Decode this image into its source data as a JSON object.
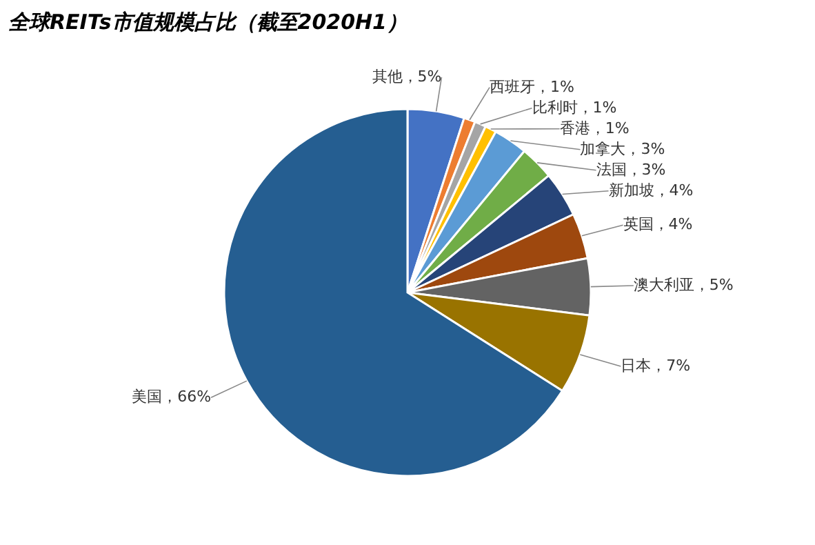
{
  "chart_data": {
    "type": "pie",
    "title": "全球REITs市值规模占比（截至2020H1）",
    "categories": [
      "其他",
      "西班牙",
      "比利时",
      "香港",
      "加拿大",
      "法国",
      "新加坡",
      "英国",
      "澳大利亚",
      "日本",
      "美国"
    ],
    "values": [
      5,
      1,
      1,
      1,
      3,
      3,
      4,
      4,
      5,
      7,
      66
    ],
    "value_labels": [
      "5%",
      "1%",
      "1%",
      "1%",
      "3%",
      "3%",
      "4%",
      "4%",
      "5%",
      "7%",
      "66%"
    ],
    "colors": [
      "#4472c4",
      "#ed7d31",
      "#a5a5a5",
      "#ffc000",
      "#5b9bd5",
      "#70ad47",
      "#264478",
      "#9e480e",
      "#636363",
      "#997300",
      "#255e91"
    ],
    "legend": false
  }
}
